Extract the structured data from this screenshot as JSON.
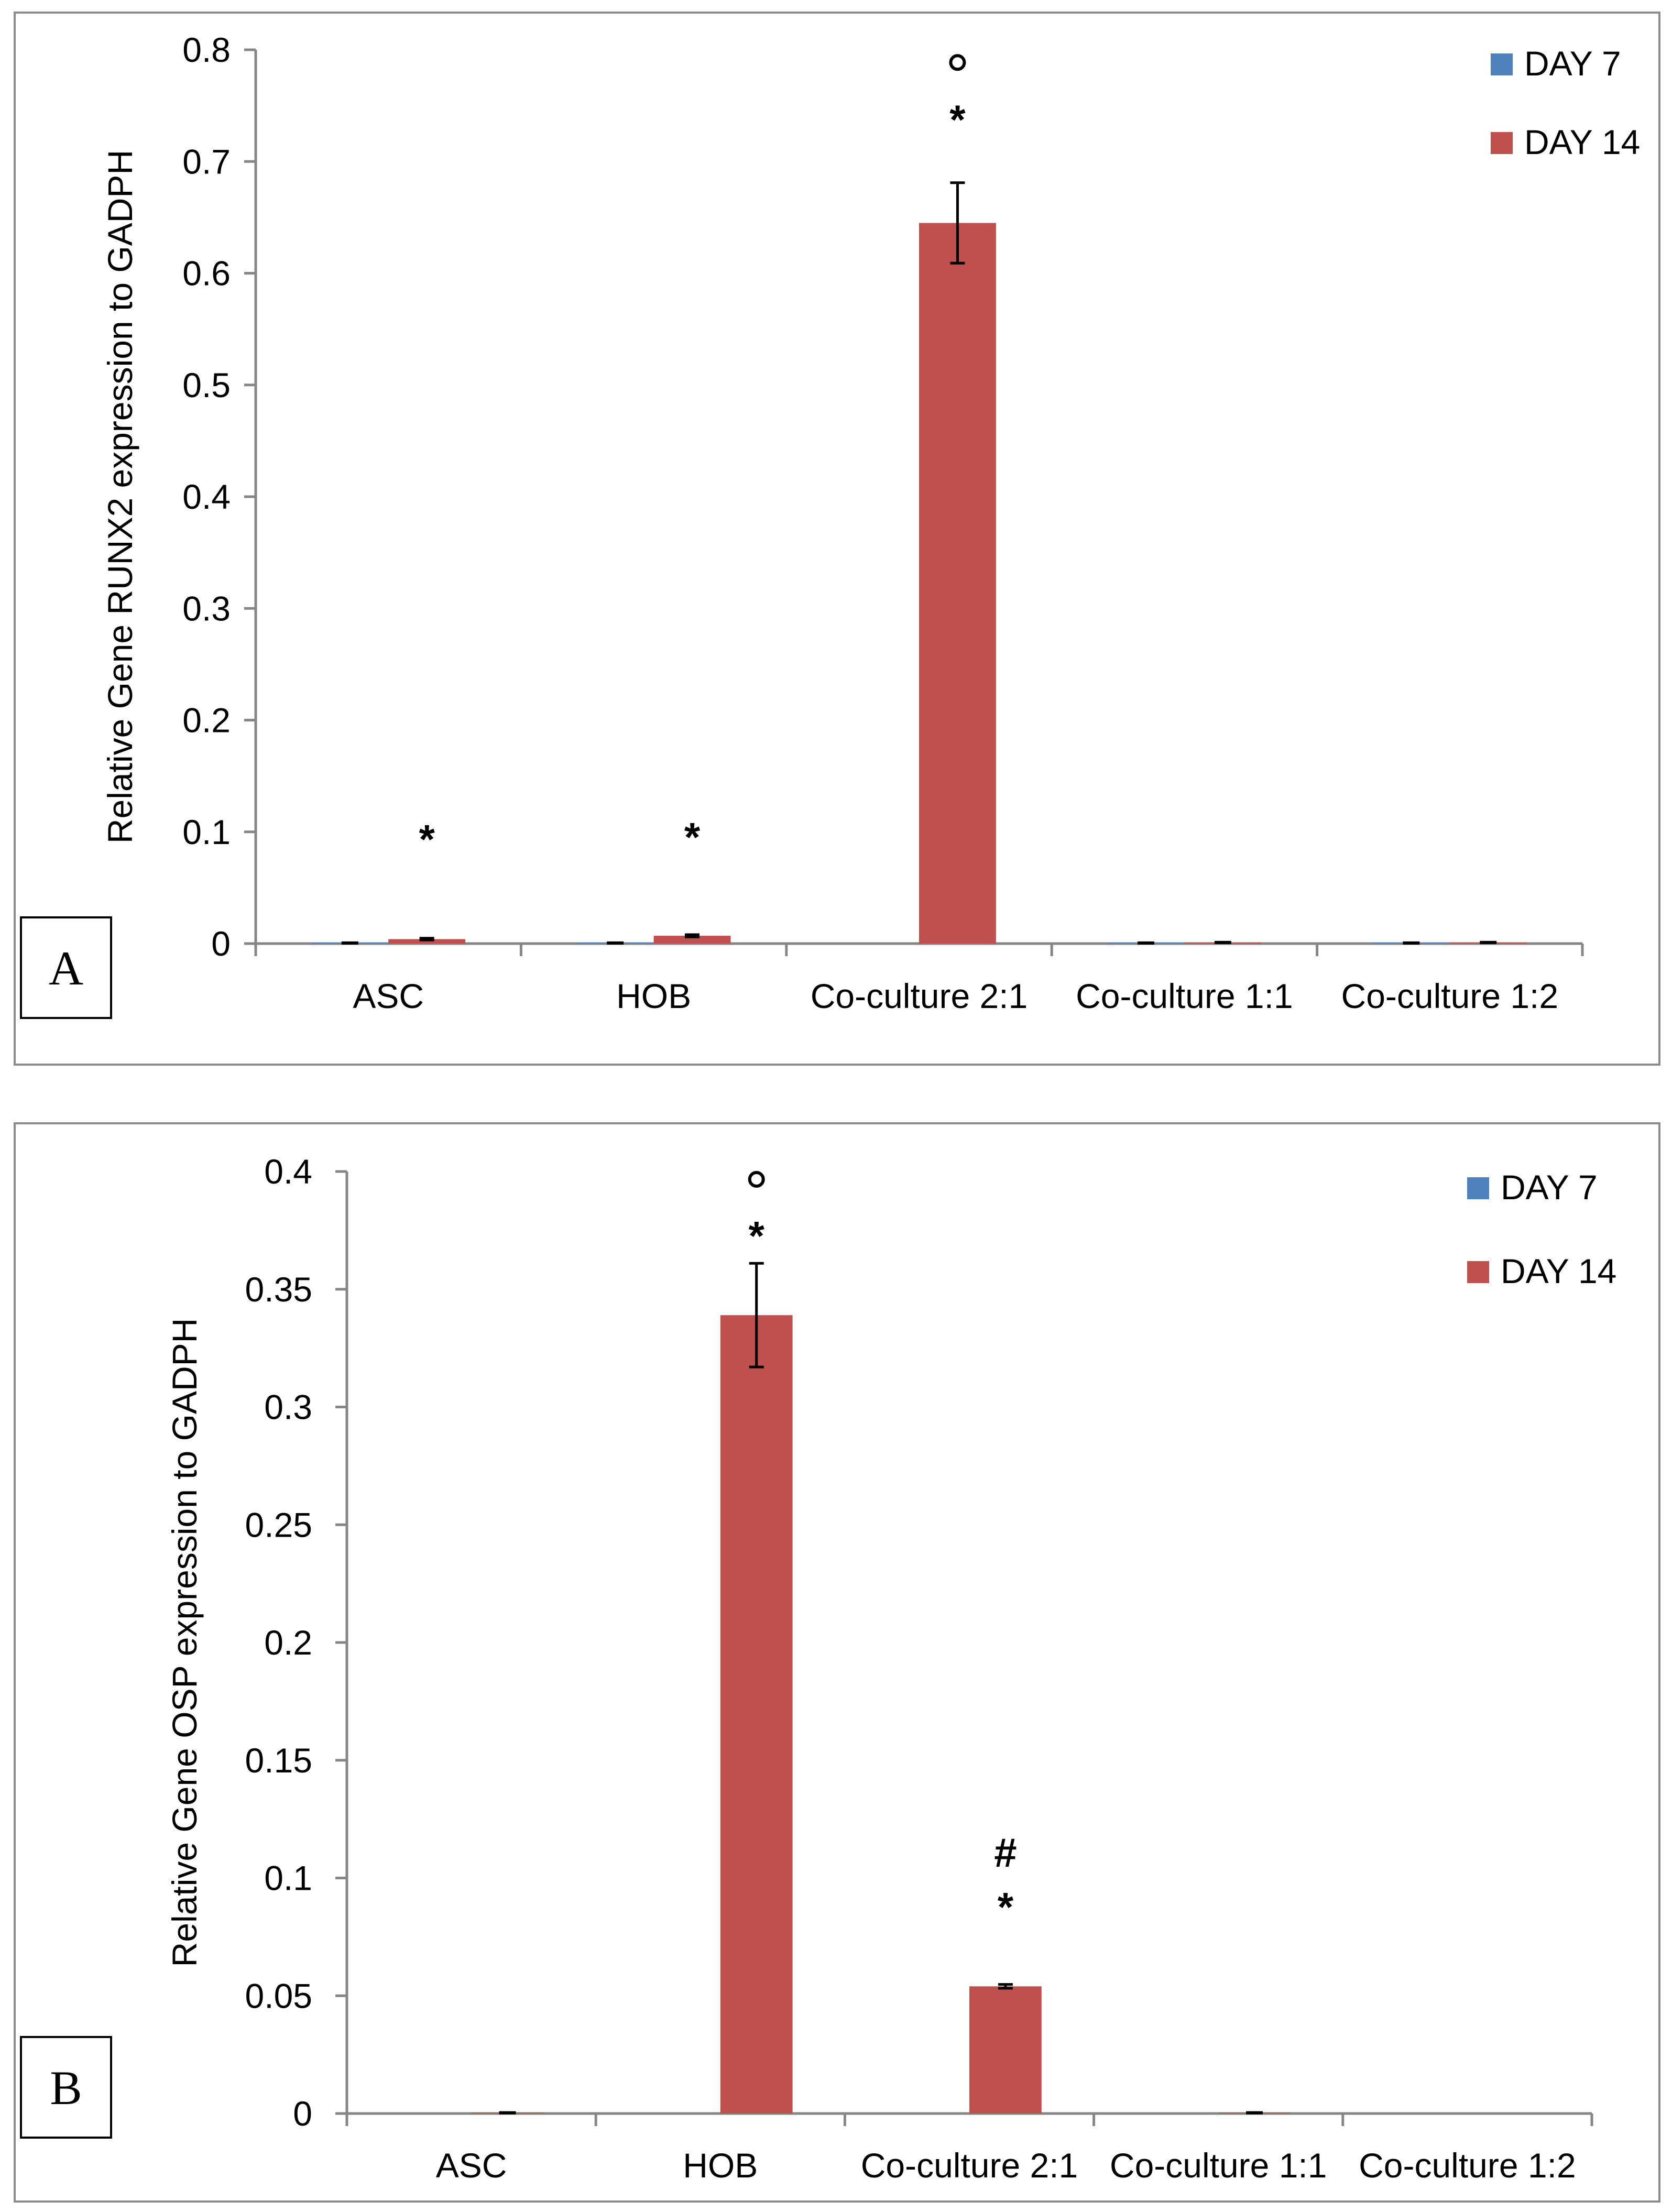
{
  "colors": {
    "day7": "#4f81bd",
    "day14": "#c0504d",
    "axis": "#868686"
  },
  "chart_data": [
    {
      "id": "A",
      "type": "bar",
      "panel_label": "A",
      "categories": [
        "ASC",
        "HOB",
        "Co-culture 2:1",
        "Co-culture 1:1",
        "Co-culture 1:2"
      ],
      "series": [
        {
          "name": "DAY 7",
          "values": [
            0.0005,
            0.0005,
            0.0,
            0.0005,
            0.0005
          ],
          "errors": [
            0,
            0,
            0,
            0,
            0
          ]
        },
        {
          "name": "DAY 14",
          "values": [
            0.004,
            0.007,
            0.645,
            0.001,
            0.001
          ],
          "errors": [
            0.0008,
            0.001,
            0.036,
            0,
            0
          ]
        }
      ],
      "yticks": [
        "0",
        "0.1",
        "0.2",
        "0.3",
        "0.4",
        "0.5",
        "0.6",
        "0.7",
        "0.8"
      ],
      "ylim": [
        0,
        0.8
      ],
      "ylabel": "Relative Gene RUNX2 expression to GADPH",
      "xlabel": "",
      "legend": [
        "DAY 7",
        "DAY 14"
      ],
      "annotations": [
        {
          "category": 0,
          "text": "*",
          "value": 0.094
        },
        {
          "category": 1,
          "text": "*",
          "value": 0.096
        },
        {
          "category": 2,
          "text": "*",
          "value": 0.738
        },
        {
          "category": 2,
          "text": "°",
          "value": 0.783
        }
      ]
    },
    {
      "id": "B",
      "type": "bar",
      "panel_label": "B",
      "categories": [
        "ASC",
        "HOB",
        "Co-culture 2:1",
        "Co-culture 1:1",
        "Co-culture 1:2"
      ],
      "series": [
        {
          "name": "DAY 7",
          "values": [
            0.0,
            0.0,
            0.0,
            0.0,
            0.0
          ],
          "errors": [
            0,
            0,
            0,
            0,
            0
          ]
        },
        {
          "name": "DAY 14",
          "values": [
            0.0003,
            0.339,
            0.054,
            0.0003,
            0.0
          ],
          "errors": [
            0,
            0.022,
            0.0008,
            0,
            0
          ]
        }
      ],
      "yticks": [
        "0",
        "0.05",
        "0.1",
        "0.15",
        "0.2",
        "0.25",
        "0.3",
        "0.35",
        "0.4"
      ],
      "ylim": [
        0,
        0.4
      ],
      "ylabel": "Relative Gene OSP expression to GADPH",
      "xlabel": "",
      "legend": [
        "DAY 7",
        "DAY 14"
      ],
      "annotations": [
        {
          "category": 1,
          "text": "*",
          "value": 0.373
        },
        {
          "category": 1,
          "text": "°",
          "value": 0.394
        },
        {
          "category": 2,
          "text": "*",
          "value": 0.088
        },
        {
          "category": 2,
          "text": "#",
          "value": 0.111
        }
      ]
    }
  ]
}
